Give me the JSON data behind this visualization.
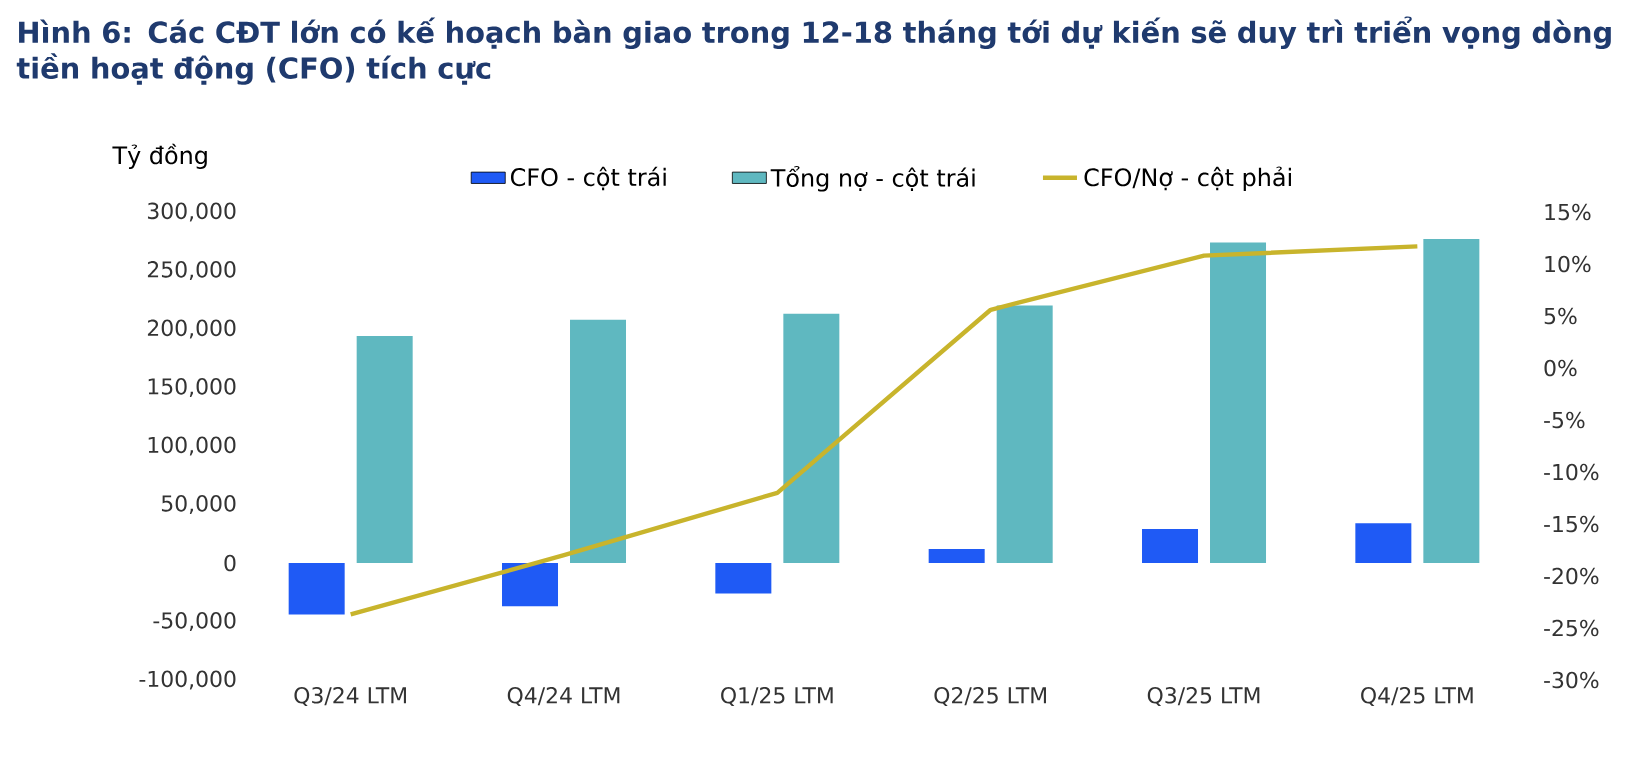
{
  "chart_data": {
    "type": "bar",
    "title": "Hình 6: Các CĐT lớn có kế hoạch bàn giao trong 12-18 tháng tới dự kiến sẽ duy trì triển vọng dòng tiền hoạt động (CFO) tích cực",
    "ylabel": "Tỷ đồng",
    "categories": [
      "Q3/24 LTM",
      "Q4/24 LTM",
      "Q1/25 LTM",
      "Q2/25 LTM",
      "Q3/25 LTM",
      "Q4/25 LTM"
    ],
    "series": [
      {
        "name": "CFO - cột trái",
        "color": "#1f5af5",
        "values": [
          -44000,
          -37000,
          -26000,
          12000,
          29000,
          34000
        ]
      },
      {
        "name": "Tổng nợ - cột trái",
        "color": "#5fb8c0",
        "values": [
          194000,
          208000,
          213000,
          220000,
          274000,
          277000
        ]
      },
      {
        "name": "CFO/Nợ - cột phải",
        "type": "line",
        "axis": "y2",
        "color": "#c8b42c",
        "values": [
          -23.7,
          -18,
          -12,
          5.6,
          10.8,
          11.7
        ]
      }
    ],
    "ylim": [
      -100000,
      300000
    ],
    "yticks": [
      {
        "value": -100000,
        "label": "-100,000"
      },
      {
        "value": -50000,
        "label": "-50,000"
      },
      0,
      {
        "value": 50000,
        "label": "50,000"
      },
      {
        "value": 100000,
        "label": "100,000"
      },
      {
        "value": 150000,
        "label": "150,000"
      },
      {
        "value": 200000,
        "label": "200,000"
      },
      {
        "value": 250000,
        "label": "250,000"
      },
      {
        "value": 300000,
        "label": "300,000"
      }
    ],
    "y2lim": [
      -30,
      15
    ],
    "y2ticks": [
      {
        "value": -30,
        "label": "-30%"
      },
      {
        "value": -25,
        "label": "-25%"
      },
      {
        "value": -20,
        "label": "-20%"
      },
      {
        "value": -15,
        "label": "-15%"
      },
      {
        "value": -10,
        "label": "-10%"
      },
      {
        "value": -5,
        "label": "-5%"
      },
      {
        "value": 0,
        "label": "0%"
      },
      {
        "value": 5,
        "label": "5%"
      },
      {
        "value": 10,
        "label": "10%"
      },
      {
        "value": 15,
        "label": "15%"
      }
    ],
    "legend": "top"
  }
}
